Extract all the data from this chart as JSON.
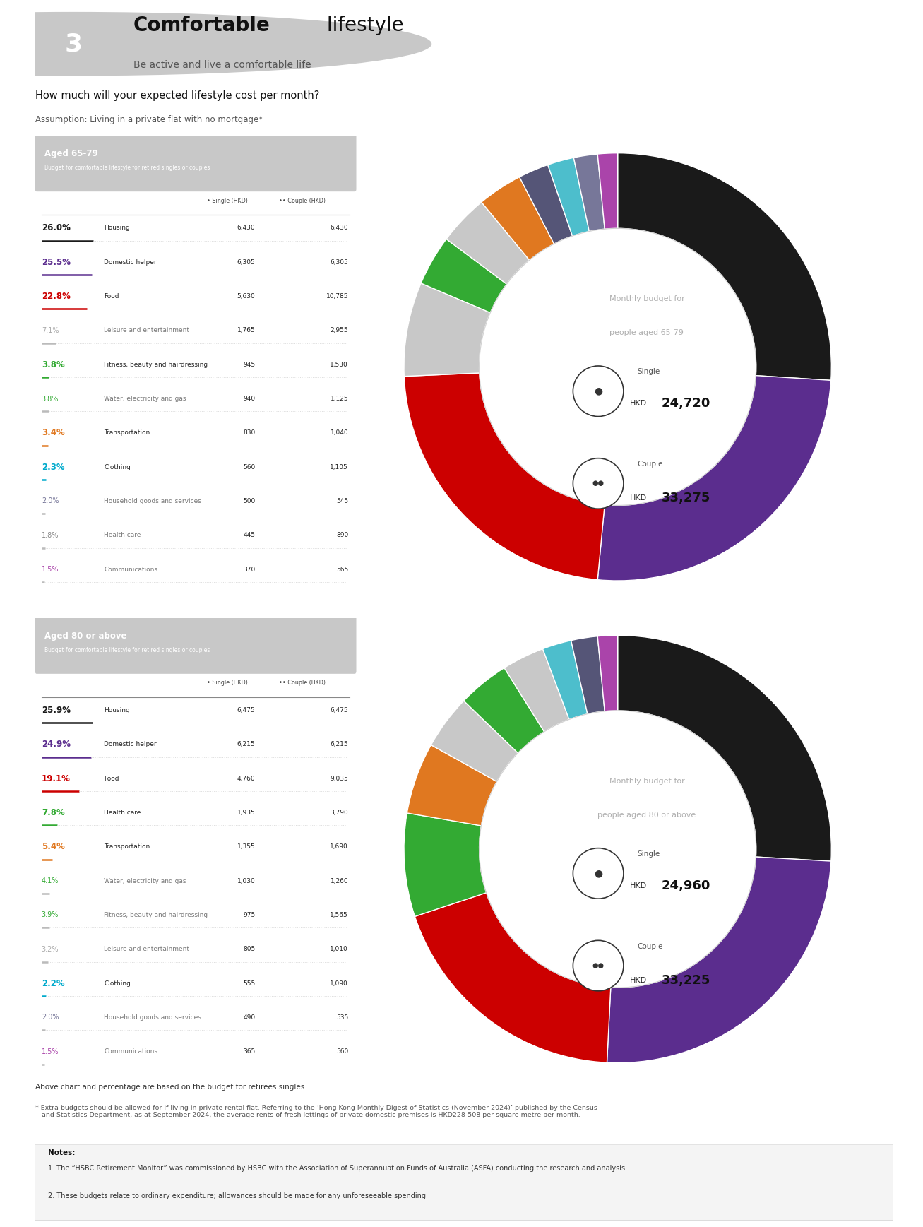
{
  "title_number": "3",
  "title_bold": "Comfortable",
  "title_light": " lifestyle",
  "subtitle": "Be active and live a comfortable life",
  "question": "How much will your expected lifestyle cost per month?",
  "assumption": "Assumption: Living in a private flat with no mortgage*",
  "section1_title": "Aged 65-79",
  "section1_subtitle": "Budget for comfortable lifestyle for retired singles or couples",
  "section1_rows": [
    {
      "pct": "26.0%",
      "label": "Housing",
      "single": "6,430",
      "couple": "6,430",
      "color": "#1a1a1a",
      "bold": true
    },
    {
      "pct": "25.5%",
      "label": "Domestic helper",
      "single": "6,305",
      "couple": "6,305",
      "color": "#5b2d8e",
      "bold": true
    },
    {
      "pct": "22.8%",
      "label": "Food",
      "single": "5,630",
      "couple": "10,785",
      "color": "#cc0000",
      "bold": true
    },
    {
      "pct": "7.1%",
      "label": "Leisure and entertainment",
      "single": "1,765",
      "couple": "2,955",
      "color": "#aaaaaa",
      "bold": false
    },
    {
      "pct": "3.8%",
      "label": "Fitness, beauty and hairdressing",
      "single": "945",
      "couple": "1,530",
      "color": "#33aa33",
      "bold": true
    },
    {
      "pct": "3.8%",
      "label": "Water, electricity and gas",
      "single": "940",
      "couple": "1,125",
      "color": "#33aa33",
      "bold": false
    },
    {
      "pct": "3.4%",
      "label": "Transportation",
      "single": "830",
      "couple": "1,040",
      "color": "#e07820",
      "bold": true
    },
    {
      "pct": "2.3%",
      "label": "Clothing",
      "single": "560",
      "couple": "1,105",
      "color": "#00aacc",
      "bold": true
    },
    {
      "pct": "2.0%",
      "label": "Household goods and services",
      "single": "500",
      "couple": "545",
      "color": "#777799",
      "bold": false
    },
    {
      "pct": "1.8%",
      "label": "Health care",
      "single": "445",
      "couple": "890",
      "color": "#888888",
      "bold": false
    },
    {
      "pct": "1.5%",
      "label": "Communications",
      "single": "370",
      "couple": "565",
      "color": "#aa44aa",
      "bold": false
    }
  ],
  "section1_single": "24,720",
  "section1_couple": "33,275",
  "section1_pie": [
    26.0,
    25.5,
    22.8,
    7.1,
    3.8,
    3.8,
    3.4,
    2.3,
    2.0,
    1.8,
    1.5
  ],
  "section1_pie_colors": [
    "#1a1a1a",
    "#5b2d8e",
    "#cc0000",
    "#c8c8c8",
    "#33aa33",
    "#c8c8c8",
    "#e07820",
    "#555577",
    "#4dbecc",
    "#777799",
    "#aa44aa"
  ],
  "section2_title": "Aged 80 or above",
  "section2_subtitle": "Budget for comfortable lifestyle for retired singles or couples",
  "section2_rows": [
    {
      "pct": "25.9%",
      "label": "Housing",
      "single": "6,475",
      "couple": "6,475",
      "color": "#1a1a1a",
      "bold": true
    },
    {
      "pct": "24.9%",
      "label": "Domestic helper",
      "single": "6,215",
      "couple": "6,215",
      "color": "#5b2d8e",
      "bold": true
    },
    {
      "pct": "19.1%",
      "label": "Food",
      "single": "4,760",
      "couple": "9,035",
      "color": "#cc0000",
      "bold": true
    },
    {
      "pct": "7.8%",
      "label": "Health care",
      "single": "1,935",
      "couple": "3,790",
      "color": "#33aa33",
      "bold": true
    },
    {
      "pct": "5.4%",
      "label": "Transportation",
      "single": "1,355",
      "couple": "1,690",
      "color": "#e07820",
      "bold": true
    },
    {
      "pct": "4.1%",
      "label": "Water, electricity and gas",
      "single": "1,030",
      "couple": "1,260",
      "color": "#33aa33",
      "bold": false
    },
    {
      "pct": "3.9%",
      "label": "Fitness, beauty and hairdressing",
      "single": "975",
      "couple": "1,565",
      "color": "#33aa33",
      "bold": false
    },
    {
      "pct": "3.2%",
      "label": "Leisure and entertainment",
      "single": "805",
      "couple": "1,010",
      "color": "#aaaaaa",
      "bold": false
    },
    {
      "pct": "2.2%",
      "label": "Clothing",
      "single": "555",
      "couple": "1,090",
      "color": "#00aacc",
      "bold": true
    },
    {
      "pct": "2.0%",
      "label": "Household goods and services",
      "single": "490",
      "couple": "535",
      "color": "#777799",
      "bold": false
    },
    {
      "pct": "1.5%",
      "label": "Communications",
      "single": "365",
      "couple": "560",
      "color": "#aa44aa",
      "bold": false
    }
  ],
  "section2_single": "24,960",
  "section2_couple": "33,225",
  "section2_pie": [
    25.9,
    24.9,
    19.1,
    7.8,
    5.4,
    4.1,
    3.9,
    3.2,
    2.2,
    2.0,
    1.5
  ],
  "section2_pie_colors": [
    "#1a1a1a",
    "#5b2d8e",
    "#cc0000",
    "#33aa33",
    "#e07820",
    "#c8c8c8",
    "#33aa33",
    "#c8c8c8",
    "#4dbecc",
    "#555577",
    "#aa44aa"
  ],
  "footer1": "Above chart and percentage are based on the budget for retirees singles.",
  "footer2": "* Extra budgets should be allowed for if living in private rental flat. Referring to the ‘Hong Kong Monthly Digest of Statistics (November 2024)’ published by the Census\n   and Statistics Department, as at September 2024, the average rents of fresh lettings of private domestic premises is HKD228-508 per square metre per month.",
  "notes_title": "Notes:",
  "note1": "1. The “HSBC Retirement Monitor” was commissioned by HSBC with the Association of Superannuation Funds of Australia (ASFA) conducting the research and analysis.",
  "note2": "2. These budgets relate to ordinary expenditure; allowances should be made for any unforeseeable spending.",
  "bg_color": "#ffffff",
  "header_bg": "#c8c8c8",
  "circle_num_color": "#c0c0c0"
}
